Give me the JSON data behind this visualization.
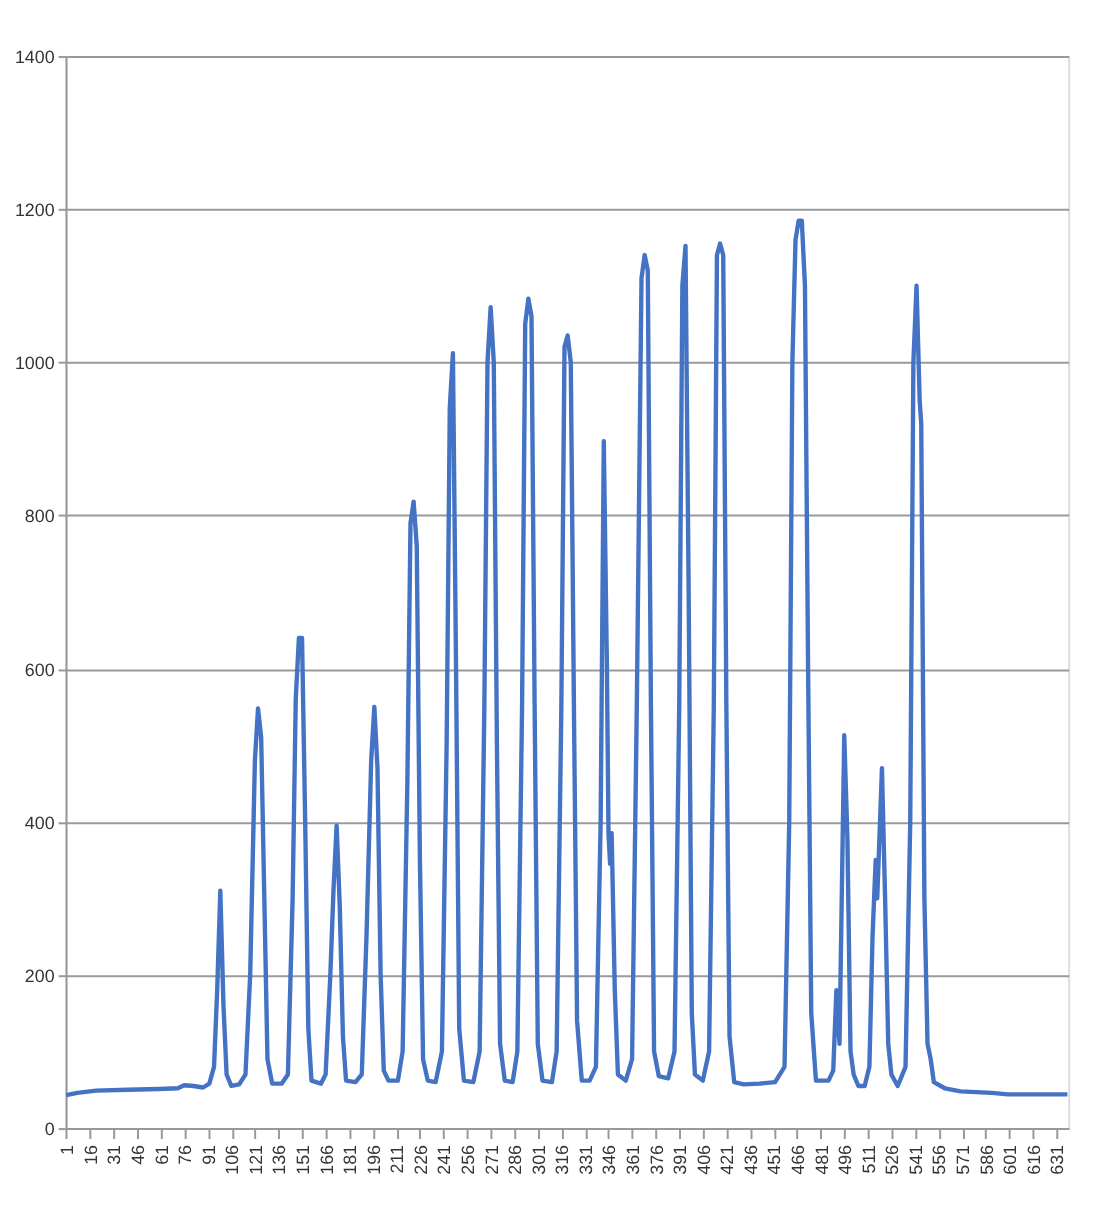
{
  "chart_data": {
    "type": "line",
    "grid": "y",
    "marker": "none",
    "line_style": "solid",
    "xlim": [
      0.5,
      638.5
    ],
    "xticks": [
      1,
      16,
      31,
      46,
      61,
      76,
      91,
      106,
      121,
      136,
      151,
      166,
      181,
      196,
      211,
      226,
      241,
      256,
      271,
      286,
      301,
      316,
      331,
      346,
      361,
      376,
      391,
      406,
      421,
      436,
      451,
      466,
      481,
      496,
      511,
      526,
      541,
      556,
      571,
      586,
      601,
      616,
      631
    ],
    "ylim": [
      0,
      1400
    ],
    "yticks": [
      0,
      200,
      400,
      600,
      800,
      1000,
      1200,
      1400
    ],
    "series": [
      {
        "color": "#4472c4",
        "x": [
          1,
          8,
          20,
          40,
          60,
          72,
          76,
          82,
          88,
          92,
          95,
          97,
          99,
          101,
          103,
          106,
          111,
          115,
          118,
          121,
          123,
          125,
          127,
          129,
          132,
          138,
          142,
          145,
          147,
          149,
          151,
          153,
          155,
          157,
          163,
          166,
          169,
          171,
          173,
          175,
          177,
          179,
          185,
          189,
          192,
          195,
          197,
          199,
          201,
          203,
          206,
          212,
          215,
          218,
          220,
          222,
          224,
          226,
          228,
          231,
          236,
          240,
          243,
          245,
          247,
          249,
          251,
          254,
          260,
          264,
          267,
          269,
          271,
          273,
          275,
          277,
          280,
          285,
          288,
          291,
          293,
          295,
          297,
          299,
          301,
          304,
          310,
          313,
          316,
          318,
          320,
          322,
          324,
          326,
          329,
          334,
          338,
          341,
          343,
          345,
          346,
          347,
          348,
          350,
          352,
          357,
          361,
          364,
          367,
          369,
          371,
          373,
          375,
          378,
          384,
          388,
          391,
          393,
          395,
          397,
          399,
          401,
          406,
          410,
          413,
          415,
          417,
          419,
          421,
          423,
          426,
          432,
          442,
          452,
          458,
          461,
          463,
          465,
          467,
          469,
          471,
          473,
          475,
          478,
          486,
          489,
          491,
          493,
          496,
          498,
          500,
          502,
          505,
          509,
          512,
          514,
          516,
          517,
          520,
          522,
          524,
          526,
          530,
          535,
          538,
          540,
          542,
          544,
          545,
          547,
          549,
          551,
          553,
          560,
          570,
          580,
          590,
          600,
          638
        ],
        "values": [
          43,
          46,
          49,
          50,
          51,
          52,
          56,
          55,
          53,
          58,
          80,
          180,
          310,
          160,
          70,
          55,
          57,
          70,
          200,
          480,
          548,
          510,
          300,
          90,
          58,
          58,
          70,
          300,
          560,
          640,
          640,
          400,
          130,
          62,
          58,
          70,
          200,
          310,
          395,
          290,
          120,
          62,
          60,
          70,
          250,
          480,
          550,
          470,
          200,
          75,
          62,
          62,
          100,
          450,
          790,
          818,
          760,
          350,
          90,
          62,
          60,
          100,
          500,
          940,
          1012,
          600,
          130,
          62,
          60,
          100,
          550,
          1000,
          1072,
          1000,
          500,
          110,
          62,
          60,
          100,
          550,
          1050,
          1083,
          1060,
          550,
          110,
          62,
          60,
          100,
          550,
          1020,
          1035,
          1000,
          550,
          140,
          62,
          62,
          80,
          400,
          897,
          600,
          385,
          345,
          385,
          180,
          70,
          62,
          90,
          550,
          1110,
          1140,
          1120,
          550,
          100,
          68,
          65,
          100,
          550,
          1100,
          1152,
          700,
          150,
          70,
          62,
          100,
          550,
          1140,
          1155,
          1140,
          550,
          120,
          60,
          57,
          58,
          60,
          80,
          400,
          1000,
          1160,
          1185,
          1185,
          1100,
          600,
          150,
          62,
          62,
          75,
          180,
          110,
          513,
          380,
          100,
          70,
          55,
          55,
          80,
          250,
          350,
          300,
          470,
          300,
          110,
          70,
          55,
          80,
          400,
          1000,
          1100,
          950,
          920,
          300,
          110,
          90,
          60,
          52,
          48,
          47,
          46,
          44,
          44
        ]
      }
    ]
  }
}
